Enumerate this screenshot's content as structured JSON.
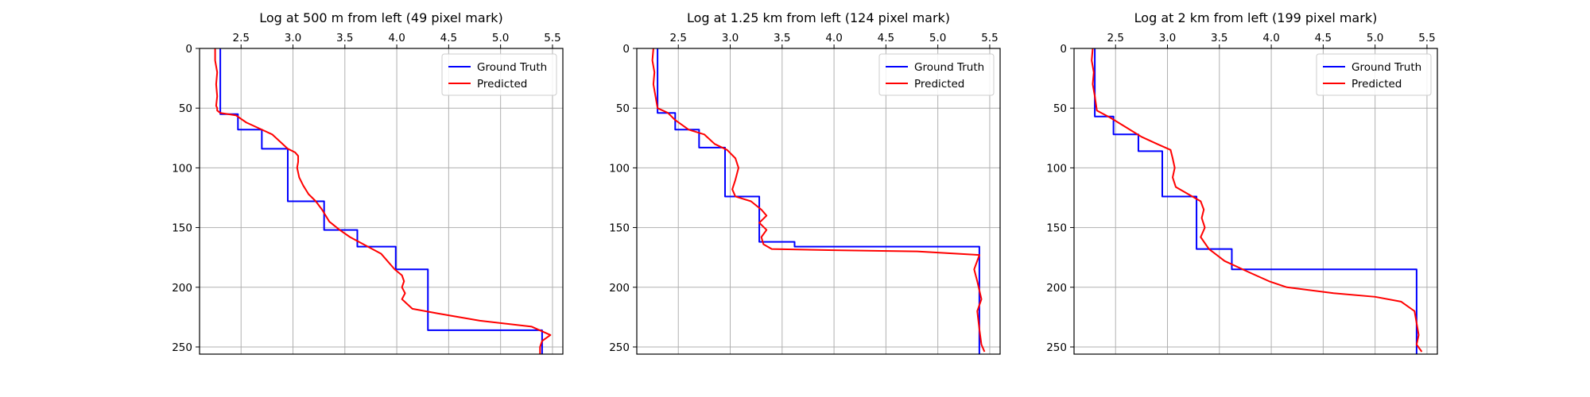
{
  "figure": {
    "background": "#ffffff",
    "gridColor": "#b0b0b0",
    "colors": {
      "ground_truth": "#0000ff",
      "predicted": "#ff0000"
    }
  },
  "chart_data": [
    {
      "type": "line",
      "title": "Log at 500 m from left (49 pixel mark)",
      "xlabel": "",
      "ylabel": "",
      "xlim": [
        2.1,
        5.6
      ],
      "ylim": [
        256,
        0
      ],
      "xticks": [
        2.5,
        3.0,
        3.5,
        4.0,
        4.5,
        5.0,
        5.5
      ],
      "xtick_labels": [
        "2.5",
        "3.0",
        "3.5",
        "4.0",
        "4.5",
        "5.0",
        "5.5"
      ],
      "yticks": [
        0,
        50,
        100,
        150,
        200,
        250
      ],
      "ytick_labels": [
        "0",
        "50",
        "100",
        "150",
        "200",
        "250"
      ],
      "x_axis_position": "top",
      "y_axis_inverted": true,
      "grid": true,
      "legend": {
        "location": "upper-right",
        "entries": [
          "Ground Truth",
          "Predicted"
        ]
      },
      "series": [
        {
          "name": "Ground Truth",
          "color": "#0000ff",
          "x": [
            2.3,
            2.3,
            2.47,
            2.47,
            2.7,
            2.7,
            2.95,
            2.95,
            3.3,
            3.3,
            3.62,
            3.62,
            3.99,
            3.99,
            4.3,
            4.3,
            5.4,
            5.4
          ],
          "y": [
            0,
            55,
            55,
            68,
            68,
            84,
            84,
            128,
            128,
            152,
            152,
            166,
            166,
            185,
            185,
            236,
            236,
            256
          ]
        },
        {
          "name": "Predicted",
          "color": "#ff0000",
          "x": [
            2.25,
            2.25,
            2.27,
            2.26,
            2.27,
            2.26,
            2.27,
            2.27,
            2.3,
            2.45,
            2.55,
            2.7,
            2.8,
            2.95,
            3.02,
            3.05,
            3.05,
            3.04,
            3.06,
            3.1,
            3.15,
            3.22,
            3.28,
            3.35,
            3.45,
            3.55,
            3.7,
            3.85,
            3.98,
            4.05,
            4.07,
            4.05,
            4.08,
            4.05,
            4.15,
            4.4,
            4.8,
            5.3,
            5.48,
            5.4,
            5.38,
            5.38
          ],
          "y": [
            0,
            10,
            20,
            30,
            40,
            48,
            50,
            52,
            54,
            56,
            62,
            68,
            72,
            84,
            87,
            90,
            95,
            100,
            108,
            115,
            122,
            128,
            135,
            145,
            152,
            158,
            165,
            172,
            185,
            190,
            195,
            200,
            205,
            210,
            218,
            222,
            228,
            233,
            240,
            245,
            250,
            256
          ]
        }
      ]
    },
    {
      "type": "line",
      "title": "Log at 1.25 km from left (124 pixel mark)",
      "xlabel": "",
      "ylabel": "",
      "xlim": [
        2.1,
        5.6
      ],
      "ylim": [
        256,
        0
      ],
      "xticks": [
        2.5,
        3.0,
        3.5,
        4.0,
        4.5,
        5.0,
        5.5
      ],
      "xtick_labels": [
        "2.5",
        "3.0",
        "3.5",
        "4.0",
        "4.5",
        "5.0",
        "5.5"
      ],
      "yticks": [
        0,
        50,
        100,
        150,
        200,
        250
      ],
      "ytick_labels": [
        "0",
        "50",
        "100",
        "150",
        "200",
        "250"
      ],
      "x_axis_position": "top",
      "y_axis_inverted": true,
      "grid": true,
      "legend": {
        "location": "upper-right",
        "entries": [
          "Ground Truth",
          "Predicted"
        ]
      },
      "series": [
        {
          "name": "Ground Truth",
          "color": "#0000ff",
          "x": [
            2.3,
            2.3,
            2.47,
            2.47,
            2.7,
            2.7,
            2.95,
            2.95,
            3.28,
            3.28,
            3.62,
            3.62,
            5.4,
            5.4
          ],
          "y": [
            0,
            54,
            54,
            68,
            68,
            83,
            83,
            124,
            124,
            162,
            162,
            166,
            166,
            256
          ]
        },
        {
          "name": "Predicted",
          "color": "#ff0000",
          "x": [
            2.26,
            2.25,
            2.27,
            2.26,
            2.28,
            2.3,
            2.4,
            2.47,
            2.6,
            2.75,
            2.85,
            2.97,
            3.05,
            3.08,
            3.05,
            3.02,
            3.05,
            3.2,
            3.3,
            3.35,
            3.28,
            3.35,
            3.3,
            3.32,
            3.4,
            4.0,
            4.8,
            5.4,
            5.35,
            5.38,
            5.42,
            5.38,
            5.4,
            5.42,
            5.45
          ],
          "y": [
            0,
            10,
            20,
            30,
            40,
            50,
            54,
            60,
            68,
            72,
            80,
            85,
            92,
            100,
            110,
            118,
            124,
            128,
            135,
            140,
            146,
            152,
            158,
            164,
            168,
            169,
            170,
            173,
            185,
            195,
            210,
            220,
            235,
            248,
            254
          ]
        }
      ]
    },
    {
      "type": "line",
      "title": "Log at 2 km from left (199 pixel mark)",
      "xlabel": "",
      "ylabel": "",
      "xlim": [
        2.1,
        5.6
      ],
      "ylim": [
        256,
        0
      ],
      "xticks": [
        2.5,
        3.0,
        3.5,
        4.0,
        4.5,
        5.0,
        5.5
      ],
      "xtick_labels": [
        "2.5",
        "3.0",
        "3.5",
        "4.0",
        "4.5",
        "5.0",
        "5.5"
      ],
      "yticks": [
        0,
        50,
        100,
        150,
        200,
        250
      ],
      "ytick_labels": [
        "0",
        "50",
        "100",
        "150",
        "200",
        "250"
      ],
      "x_axis_position": "top",
      "y_axis_inverted": true,
      "grid": true,
      "legend": {
        "location": "upper-right",
        "entries": [
          "Ground Truth",
          "Predicted"
        ]
      },
      "series": [
        {
          "name": "Ground Truth",
          "color": "#0000ff",
          "x": [
            2.3,
            2.3,
            2.48,
            2.48,
            2.72,
            2.72,
            2.95,
            2.95,
            3.28,
            3.28,
            3.62,
            3.62,
            5.4,
            5.4
          ],
          "y": [
            0,
            57,
            57,
            72,
            72,
            86,
            86,
            124,
            124,
            168,
            168,
            185,
            185,
            256
          ]
        },
        {
          "name": "Predicted",
          "color": "#ff0000",
          "x": [
            2.28,
            2.27,
            2.29,
            2.28,
            2.3,
            2.32,
            2.45,
            2.6,
            2.75,
            2.9,
            3.03,
            3.05,
            3.07,
            3.05,
            3.08,
            3.2,
            3.32,
            3.35,
            3.33,
            3.36,
            3.32,
            3.4,
            3.55,
            3.8,
            3.98,
            4.15,
            4.6,
            5.0,
            5.25,
            5.38,
            5.4,
            5.42,
            5.4,
            5.45
          ],
          "y": [
            0,
            10,
            20,
            30,
            40,
            52,
            58,
            66,
            74,
            80,
            85,
            92,
            100,
            108,
            116,
            122,
            128,
            135,
            142,
            150,
            158,
            168,
            178,
            188,
            195,
            200,
            205,
            208,
            212,
            220,
            230,
            240,
            248,
            254
          ]
        }
      ]
    }
  ]
}
